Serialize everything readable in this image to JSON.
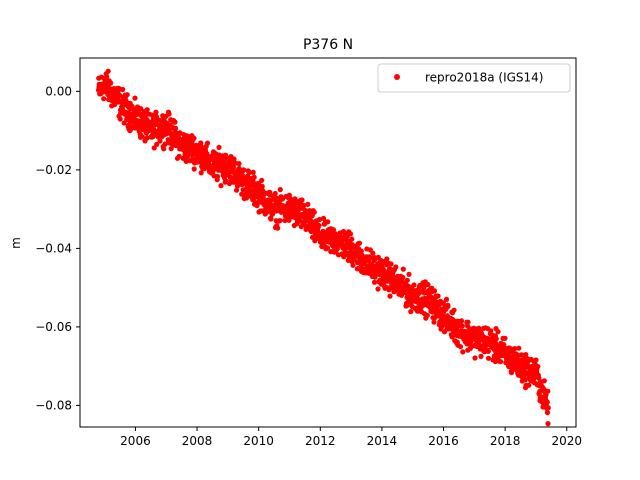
{
  "chart_data": {
    "type": "scatter",
    "title": "P376 N",
    "xlabel": "",
    "ylabel": "m",
    "xlim": [
      2004.2,
      2020.3
    ],
    "ylim": [
      -0.0855,
      0.0085
    ],
    "x_ticks": [
      2006,
      2008,
      2010,
      2012,
      2014,
      2016,
      2018,
      2020
    ],
    "y_ticks": [
      0.0,
      -0.02,
      -0.04,
      -0.06,
      -0.08
    ],
    "y_tick_labels": [
      "0.00",
      "−0.02",
      "−0.04",
      "−0.06",
      "−0.08"
    ],
    "grid": false,
    "legend_position": "upper right",
    "series": [
      {
        "name": "repro2018a (IGS14)",
        "color": "#ff0000",
        "marker": "circle",
        "trend_points": [
          [
            2004.8,
            0.0
          ],
          [
            2005.0,
            0.002
          ],
          [
            2005.5,
            -0.003
          ],
          [
            2006.0,
            -0.007
          ],
          [
            2006.5,
            -0.01
          ],
          [
            2007.0,
            -0.009
          ],
          [
            2007.5,
            -0.014
          ],
          [
            2008.0,
            -0.015
          ],
          [
            2008.5,
            -0.019
          ],
          [
            2009.0,
            -0.019
          ],
          [
            2009.5,
            -0.023
          ],
          [
            2010.0,
            -0.026
          ],
          [
            2010.5,
            -0.03
          ],
          [
            2011.0,
            -0.03
          ],
          [
            2011.5,
            -0.032
          ],
          [
            2012.0,
            -0.037
          ],
          [
            2012.5,
            -0.038
          ],
          [
            2013.0,
            -0.04
          ],
          [
            2013.5,
            -0.044
          ],
          [
            2014.0,
            -0.046
          ],
          [
            2014.5,
            -0.049
          ],
          [
            2015.0,
            -0.052
          ],
          [
            2015.5,
            -0.053
          ],
          [
            2016.0,
            -0.057
          ],
          [
            2016.5,
            -0.061
          ],
          [
            2017.0,
            -0.063
          ],
          [
            2017.5,
            -0.064
          ],
          [
            2018.0,
            -0.067
          ],
          [
            2018.5,
            -0.07
          ],
          [
            2019.0,
            -0.072
          ],
          [
            2019.4,
            -0.081
          ]
        ],
        "scatter_amplitude": 0.0035
      }
    ]
  }
}
